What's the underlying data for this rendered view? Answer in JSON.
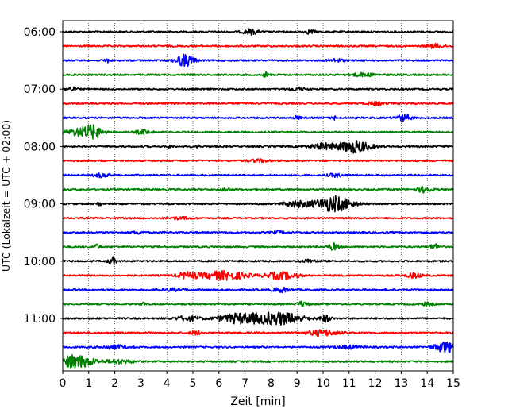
{
  "chart_data": {
    "type": "line",
    "title": "",
    "xlabel": "Zeit  [min]",
    "ylabel": "UTC (Lokalzeit = UTC + 02:00)",
    "xlim": [
      0,
      15
    ],
    "x_ticks": [
      "0",
      "1",
      "2",
      "3",
      "4",
      "5",
      "6",
      "7",
      "8",
      "9",
      "10",
      "11",
      "12",
      "13",
      "14",
      "15"
    ],
    "y_ticks": [
      "06:00",
      "07:00",
      "08:00",
      "09:00",
      "10:00",
      "11:00"
    ],
    "grid": "vertical dotted",
    "line_minutes": 15,
    "color_cycle": [
      "#000000",
      "#ff0000",
      "#0000ff",
      "#008000"
    ],
    "series": [
      {
        "start": "06:00",
        "color": "#000000",
        "events": [
          {
            "t": 7.2,
            "amp": 0.4,
            "w": 0.3
          },
          {
            "t": 9.5,
            "amp": 0.3,
            "w": 0.2
          }
        ]
      },
      {
        "start": "06:15",
        "color": "#ff0000",
        "events": [
          {
            "t": 14.3,
            "amp": 0.3,
            "w": 0.3
          }
        ]
      },
      {
        "start": "06:30",
        "color": "#0000ff",
        "events": [
          {
            "t": 4.7,
            "amp": 0.9,
            "w": 0.35
          },
          {
            "t": 1.7,
            "amp": 0.35,
            "w": 0.1
          },
          {
            "t": 10.5,
            "amp": 0.25,
            "w": 0.3
          }
        ]
      },
      {
        "start": "06:45",
        "color": "#008000",
        "events": [
          {
            "t": 7.8,
            "amp": 0.4,
            "w": 0.1
          },
          {
            "t": 11.5,
            "amp": 0.25,
            "w": 0.5
          }
        ]
      },
      {
        "start": "07:00",
        "color": "#000000",
        "events": [
          {
            "t": 0.3,
            "amp": 0.35,
            "w": 0.2
          },
          {
            "t": 9.0,
            "amp": 0.25,
            "w": 0.3
          }
        ]
      },
      {
        "start": "07:15",
        "color": "#ff0000",
        "events": [
          {
            "t": 12.0,
            "amp": 0.25,
            "w": 0.3
          }
        ]
      },
      {
        "start": "07:30",
        "color": "#0000ff",
        "events": [
          {
            "t": 13.1,
            "amp": 0.5,
            "w": 0.3
          },
          {
            "t": 10.4,
            "amp": 0.35,
            "w": 0.08
          },
          {
            "t": 9.0,
            "amp": 0.25,
            "w": 0.15
          }
        ]
      },
      {
        "start": "07:45",
        "color": "#008000",
        "events": [
          {
            "t": 0.8,
            "amp": 0.7,
            "w": 0.6
          },
          {
            "t": 1.2,
            "amp": 0.6,
            "w": 0.3
          },
          {
            "t": 3.1,
            "amp": 0.3,
            "w": 0.3
          }
        ]
      },
      {
        "start": "08:00",
        "color": "#000000",
        "events": [
          {
            "t": 11.2,
            "amp": 0.95,
            "w": 0.6
          },
          {
            "t": 10.0,
            "amp": 0.45,
            "w": 0.5
          },
          {
            "t": 5.2,
            "amp": 0.4,
            "w": 0.05
          },
          {
            "t": 4.1,
            "amp": 0.3,
            "w": 0.05
          }
        ]
      },
      {
        "start": "08:15",
        "color": "#ff0000",
        "events": [
          {
            "t": 7.5,
            "amp": 0.2,
            "w": 0.4
          }
        ]
      },
      {
        "start": "08:30",
        "color": "#0000ff",
        "events": [
          {
            "t": 1.5,
            "amp": 0.3,
            "w": 0.3
          },
          {
            "t": 10.5,
            "amp": 0.25,
            "w": 0.3
          }
        ]
      },
      {
        "start": "08:45",
        "color": "#008000",
        "events": [
          {
            "t": 13.9,
            "amp": 0.5,
            "w": 0.25
          },
          {
            "t": 6.3,
            "amp": 0.3,
            "w": 0.15
          }
        ]
      },
      {
        "start": "09:00",
        "color": "#000000",
        "events": [
          {
            "t": 10.4,
            "amp": 1.2,
            "w": 0.7
          },
          {
            "t": 9.0,
            "amp": 0.45,
            "w": 0.5
          },
          {
            "t": 1.4,
            "amp": 0.3,
            "w": 0.1
          }
        ]
      },
      {
        "start": "09:15",
        "color": "#ff0000",
        "events": [
          {
            "t": 4.5,
            "amp": 0.15,
            "w": 0.5
          }
        ]
      },
      {
        "start": "09:30",
        "color": "#0000ff",
        "events": [
          {
            "t": 8.3,
            "amp": 0.25,
            "w": 0.2
          },
          {
            "t": 2.9,
            "amp": 0.2,
            "w": 0.2
          }
        ]
      },
      {
        "start": "09:45",
        "color": "#008000",
        "events": [
          {
            "t": 10.4,
            "amp": 0.5,
            "w": 0.2
          },
          {
            "t": 14.3,
            "amp": 0.4,
            "w": 0.2
          },
          {
            "t": 1.3,
            "amp": 0.3,
            "w": 0.15
          }
        ]
      },
      {
        "start": "10:00",
        "color": "#000000",
        "events": [
          {
            "t": 1.9,
            "amp": 0.6,
            "w": 0.15
          },
          {
            "t": 9.5,
            "amp": 0.25,
            "w": 0.3
          }
        ]
      },
      {
        "start": "10:15",
        "color": "#ff0000",
        "events": [
          {
            "t": 6.2,
            "amp": 0.65,
            "w": 0.9
          },
          {
            "t": 8.4,
            "amp": 0.55,
            "w": 0.6
          },
          {
            "t": 4.8,
            "amp": 0.45,
            "w": 0.4
          },
          {
            "t": 13.5,
            "amp": 0.35,
            "w": 0.3
          }
        ]
      },
      {
        "start": "10:30",
        "color": "#0000ff",
        "events": [
          {
            "t": 8.4,
            "amp": 0.35,
            "w": 0.3
          },
          {
            "t": 4.2,
            "amp": 0.2,
            "w": 0.4
          }
        ]
      },
      {
        "start": "10:45",
        "color": "#008000",
        "events": [
          {
            "t": 9.2,
            "amp": 0.4,
            "w": 0.2
          },
          {
            "t": 3.1,
            "amp": 0.3,
            "w": 0.1
          },
          {
            "t": 14.0,
            "amp": 0.25,
            "w": 0.2
          }
        ]
      },
      {
        "start": "11:00",
        "color": "#000000",
        "events": [
          {
            "t": 8.3,
            "amp": 0.95,
            "w": 0.9
          },
          {
            "t": 6.8,
            "amp": 0.75,
            "w": 0.8
          },
          {
            "t": 10.1,
            "amp": 0.5,
            "w": 0.2
          },
          {
            "t": 4.8,
            "amp": 0.35,
            "w": 0.5
          }
        ]
      },
      {
        "start": "11:15",
        "color": "#ff0000",
        "events": [
          {
            "t": 10.0,
            "amp": 0.45,
            "w": 0.6
          },
          {
            "t": 5.1,
            "amp": 0.3,
            "w": 0.2
          }
        ]
      },
      {
        "start": "11:30",
        "color": "#0000ff",
        "events": [
          {
            "t": 14.7,
            "amp": 0.85,
            "w": 0.4
          },
          {
            "t": 2.0,
            "amp": 0.3,
            "w": 0.5
          },
          {
            "t": 11.0,
            "amp": 0.25,
            "w": 0.5
          }
        ]
      },
      {
        "start": "11:45",
        "color": "#008000",
        "events": [
          {
            "t": 0.5,
            "amp": 1.0,
            "w": 0.7
          },
          {
            "t": 2.2,
            "amp": 0.3,
            "w": 0.5
          }
        ]
      }
    ]
  }
}
